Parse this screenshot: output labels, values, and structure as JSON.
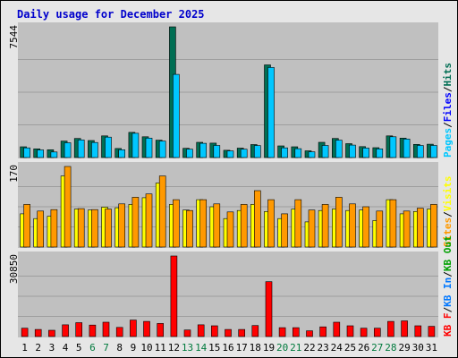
{
  "title": "Daily usage for December 2025",
  "colors": {
    "frame_bg": "#e6e6e6",
    "plot_bg": "#c0c0c0",
    "gridline": "#9e9e9e",
    "title": "#0000cc",
    "hits": "#006e53",
    "files": "#00c7ff",
    "sites": "#ff9900",
    "visits": "#ffff00",
    "kbytes": "#ff0000",
    "weekday_label": "#000000",
    "weekend_label": "#007a3d"
  },
  "chart_data": [
    {
      "type": "bar",
      "panel": "hits-files",
      "y_max_label": "7544",
      "ylim": [
        0,
        7544
      ],
      "gridlines": true,
      "categories": [
        "1",
        "2",
        "3",
        "4",
        "5",
        "6",
        "7",
        "8",
        "9",
        "10",
        "11",
        "12",
        "13",
        "14",
        "15",
        "16",
        "17",
        "18",
        "19",
        "20",
        "21",
        "22",
        "23",
        "24",
        "25",
        "26",
        "27",
        "28",
        "29",
        "30",
        "31"
      ],
      "weekend_days": [
        "6",
        "7",
        "13",
        "14",
        "20",
        "21",
        "27",
        "28"
      ],
      "legend": [
        {
          "key": "pages",
          "label": "Pages",
          "color": "#00c7ff"
        },
        {
          "key": "sep1",
          "label": "/",
          "color": "#000000"
        },
        {
          "key": "files",
          "label": "Files",
          "color": "#0000ff"
        },
        {
          "key": "sep2",
          "label": "/",
          "color": "#000000"
        },
        {
          "key": "hits",
          "label": "Hits",
          "color": "#006e53"
        }
      ],
      "series": [
        {
          "key": "hits",
          "values": [
            620,
            500,
            450,
            950,
            1100,
            980,
            1250,
            520,
            1450,
            1200,
            1000,
            7544,
            530,
            880,
            830,
            420,
            540,
            750,
            5350,
            670,
            620,
            390,
            880,
            1100,
            800,
            630,
            570,
            1250,
            1120,
            760,
            770
          ]
        },
        {
          "key": "files",
          "values": [
            560,
            440,
            320,
            850,
            1020,
            870,
            1180,
            450,
            1400,
            1120,
            950,
            4800,
            480,
            820,
            700,
            380,
            480,
            690,
            5200,
            560,
            510,
            330,
            700,
            1000,
            720,
            550,
            500,
            1200,
            1070,
            700,
            700
          ]
        }
      ]
    },
    {
      "type": "bar",
      "panel": "visits-sites",
      "y_max_label": "170",
      "ylim": [
        0,
        170
      ],
      "gridlines": true,
      "categories": [
        "1",
        "2",
        "3",
        "4",
        "5",
        "6",
        "7",
        "8",
        "9",
        "10",
        "11",
        "12",
        "13",
        "14",
        "15",
        "16",
        "17",
        "18",
        "19",
        "20",
        "21",
        "22",
        "23",
        "24",
        "25",
        "26",
        "27",
        "28",
        "29",
        "30",
        "31"
      ],
      "legend": [
        {
          "key": "sites",
          "label": "Sites",
          "color": "#ff9900"
        },
        {
          "key": "sep",
          "label": "/",
          "color": "#000000"
        },
        {
          "key": "visits",
          "label": "Visits",
          "color": "#ffff00"
        }
      ],
      "series": [
        {
          "key": "visits",
          "values": [
            70,
            60,
            65,
            150,
            80,
            78,
            84,
            83,
            90,
            104,
            135,
            90,
            78,
            100,
            85,
            60,
            77,
            90,
            75,
            60,
            80,
            53,
            77,
            80,
            77,
            78,
            56,
            100,
            70,
            75,
            80
          ]
        },
        {
          "key": "sites",
          "values": [
            90,
            76,
            79,
            170,
            81,
            79,
            80,
            91,
            105,
            112,
            150,
            100,
            77,
            100,
            91,
            74,
            90,
            119,
            100,
            70,
            100,
            78,
            90,
            105,
            91,
            85,
            76,
            100,
            76,
            82,
            90
          ]
        }
      ]
    },
    {
      "type": "bar",
      "panel": "kbytes",
      "y_max_label": "30850",
      "ylim": [
        0,
        30850
      ],
      "gridlines": true,
      "categories": [
        "1",
        "2",
        "3",
        "4",
        "5",
        "6",
        "7",
        "8",
        "9",
        "10",
        "11",
        "12",
        "13",
        "14",
        "15",
        "16",
        "17",
        "18",
        "19",
        "20",
        "21",
        "22",
        "23",
        "24",
        "25",
        "26",
        "27",
        "28",
        "29",
        "30",
        "31"
      ],
      "legend": [
        {
          "key": "kbf",
          "label": "KB F",
          "color": "#ff0000"
        },
        {
          "key": "sep1",
          "label": "/",
          "color": "#000000"
        },
        {
          "key": "kbin",
          "label": "KB In",
          "color": "#0077ff"
        },
        {
          "key": "sep2",
          "label": "/",
          "color": "#000000"
        },
        {
          "key": "kbout",
          "label": "KB Out",
          "color": "#00a000"
        }
      ],
      "series": [
        {
          "key": "kbytes",
          "values": [
            3200,
            2700,
            2400,
            4500,
            5300,
            4400,
            5500,
            3500,
            6300,
            5800,
            5000,
            30850,
            2500,
            4500,
            4100,
            2700,
            2700,
            4200,
            21000,
            3400,
            3400,
            2200,
            3700,
            5500,
            4100,
            3200,
            3200,
            5800,
            6000,
            4100,
            3900
          ]
        }
      ]
    }
  ]
}
